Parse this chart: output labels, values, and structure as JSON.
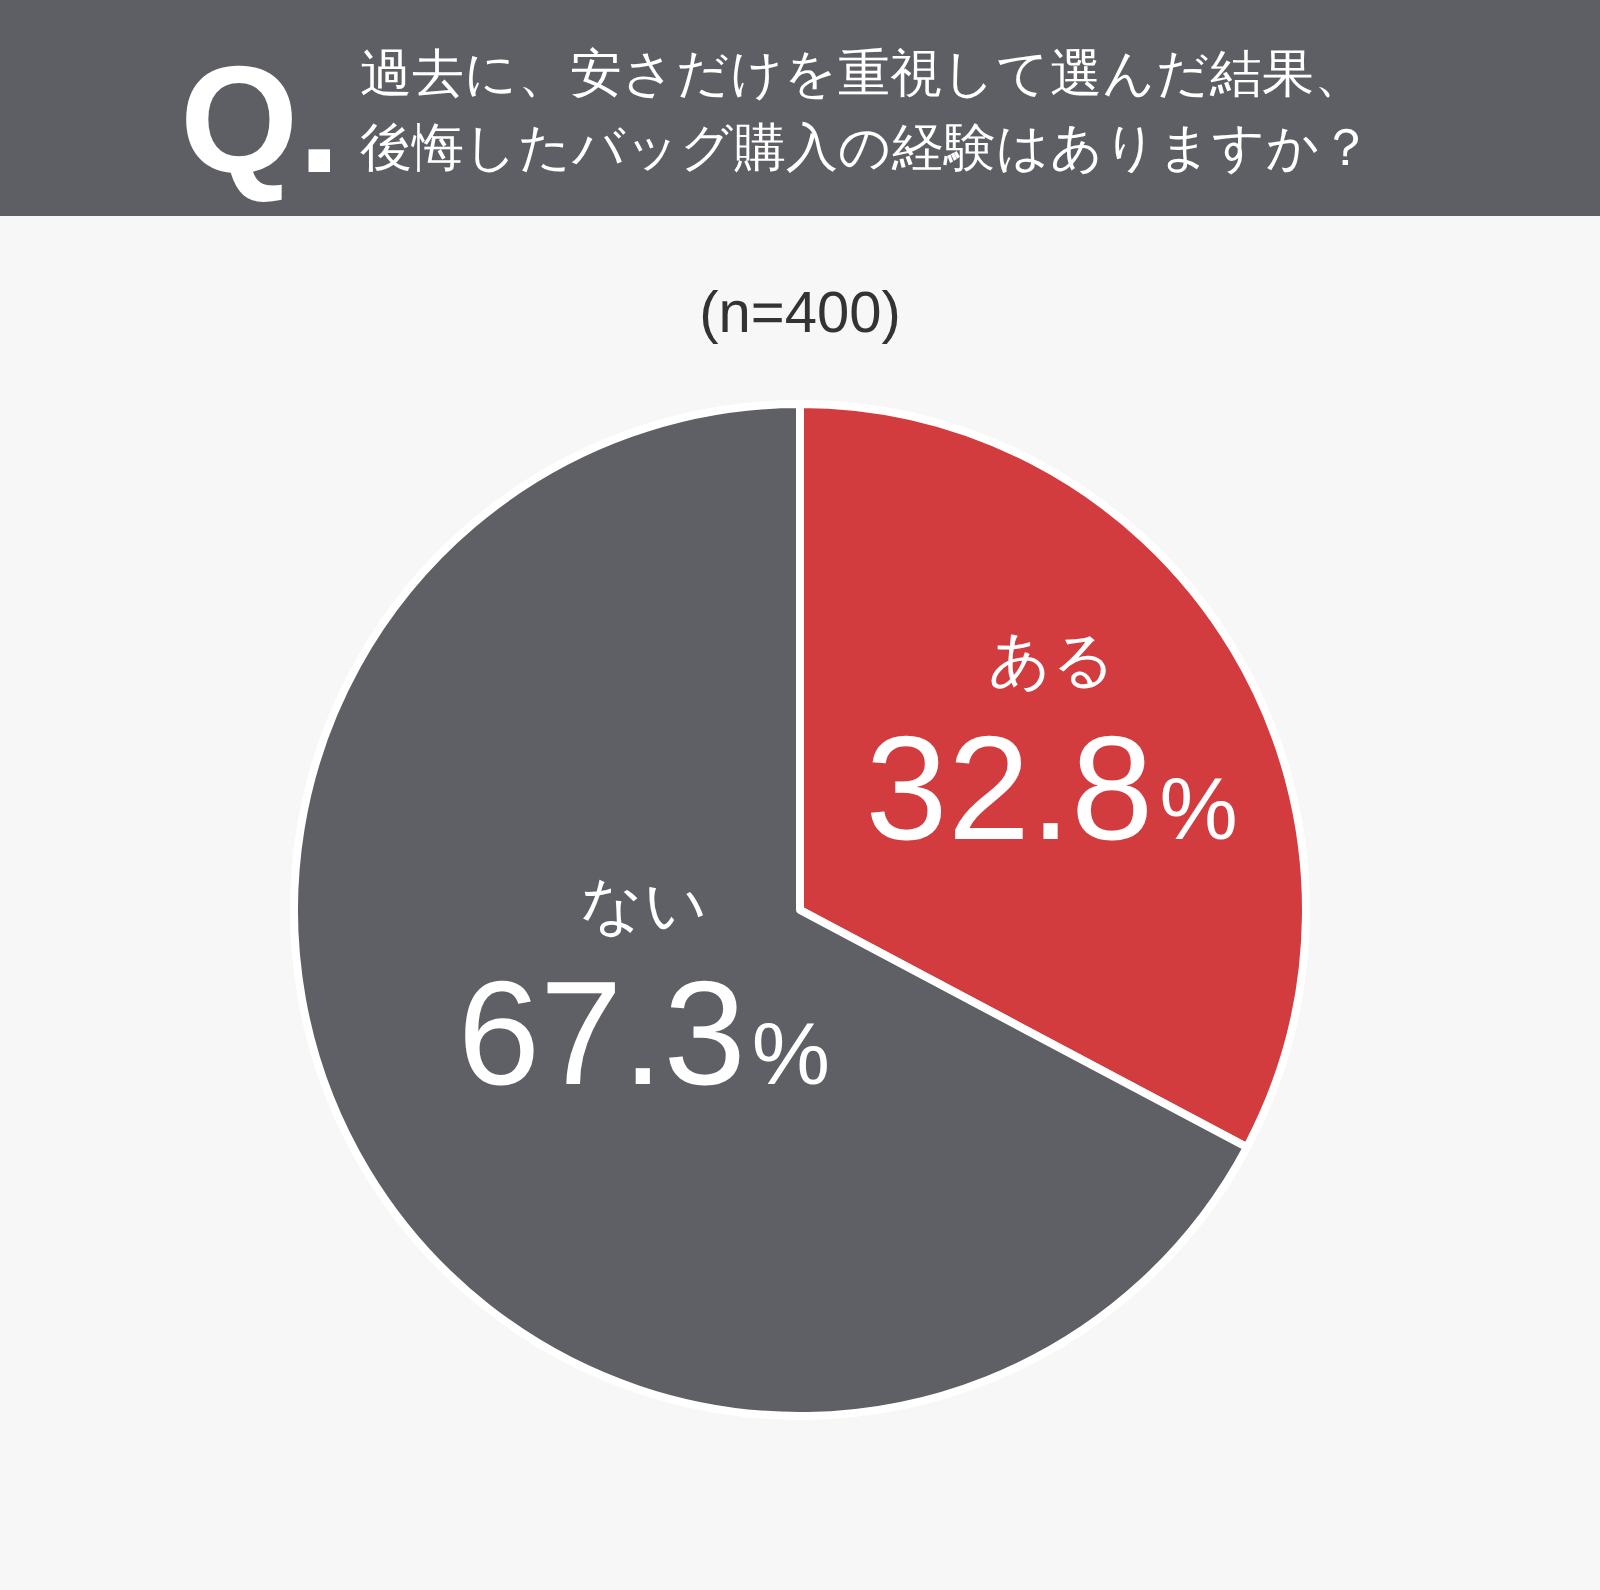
{
  "chart_data": {
    "type": "pie",
    "title": "過去に、安さだけを重視して選んだ結果、後悔したバッグ購入の経験はありますか？",
    "subtitle": "(n=400)",
    "annotations": [
      "Q."
    ],
    "categories": [
      "ある",
      "ない"
    ],
    "values": [
      32.8,
      67.3
    ],
    "colors": [
      "#d23c3f",
      "#5f6065"
    ],
    "value_labels": [
      "32.8%",
      "67.3%"
    ]
  }
}
